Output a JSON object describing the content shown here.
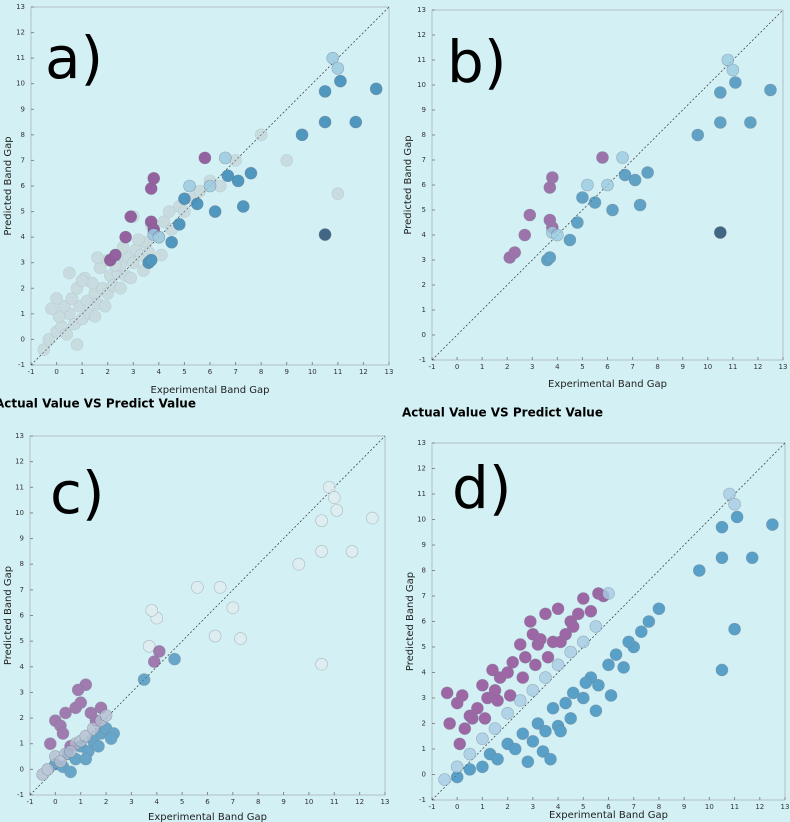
{
  "chart_data": [
    {
      "type": "scatter",
      "panel_label": "a)",
      "title": "Actual Value VS Predict Value",
      "xlabel": "Experimental Band Gap",
      "ylabel": "Predicted Band Gap",
      "xlim": [
        -1,
        13
      ],
      "ylim": [
        -1,
        13
      ],
      "xticks": [
        -1,
        0,
        1,
        2,
        3,
        4,
        5,
        6,
        7,
        8,
        9,
        10,
        11,
        12,
        13
      ],
      "yticks": [
        -1,
        0,
        1,
        2,
        3,
        4,
        5,
        6,
        7,
        8,
        9,
        10,
        11,
        12,
        13
      ],
      "series": [
        {
          "color": "#b4b8b8",
          "alpha": 0.35,
          "x": [
            -0.5,
            -0.3,
            0,
            0.2,
            0.4,
            0.5,
            0.7,
            0.9,
            1,
            1.2,
            1.3,
            1.5,
            1.6,
            1.8,
            2,
            2.1,
            2.2,
            2.4,
            2.5,
            2.7,
            2.8,
            3,
            3.1,
            3.3,
            3.5,
            3.6,
            3.8,
            4,
            4.2,
            4.5,
            4.8,
            5,
            5.3,
            5.6,
            6,
            6.4,
            7,
            8,
            9,
            11,
            0.1,
            0.3,
            0.6,
            0.8,
            1.1,
            1.4,
            1.7,
            1.9,
            2.3,
            2.6,
            2.9,
            3.2,
            3.4,
            3.7,
            4.1,
            4.4,
            0,
            0.5,
            1,
            1.5,
            2,
            2.5,
            3,
            -0.2,
            0.8,
            1.6
          ],
          "values": [
            -0.4,
            0,
            0.3,
            0.5,
            0.2,
            1.0,
            0.6,
            1.3,
            0.8,
            1.5,
            1.0,
            1.8,
            1.4,
            2.0,
            1.8,
            2.5,
            2.1,
            2.6,
            2.9,
            2.5,
            3.2,
            3.0,
            3.5,
            3.3,
            3.8,
            3.4,
            4.2,
            4.0,
            4.6,
            4.3,
            5.2,
            5.0,
            5.5,
            5.8,
            6.2,
            6.0,
            7.0,
            8.0,
            7.0,
            5.7,
            0.9,
            1.3,
            1.6,
            2.0,
            2.4,
            2.2,
            2.8,
            1.3,
            2.9,
            3.6,
            2.4,
            3.9,
            2.7,
            4.5,
            3.3,
            5.0,
            1.6,
            2.6,
            2.3,
            0.9,
            3.1,
            2.0,
            4.8,
            1.2,
            -0.2,
            3.2
          ]
        },
        {
          "color": "#8a4a92",
          "alpha": 0.85,
          "x": [
            2.1,
            2.3,
            2.7,
            2.9,
            3.7,
            3.8,
            3.7,
            5.8,
            3.8
          ],
          "values": [
            3.1,
            3.3,
            4.0,
            4.8,
            5.9,
            6.3,
            4.6,
            7.1,
            4.3
          ]
        },
        {
          "color": "#3a88b6",
          "alpha": 0.85,
          "x": [
            3.6,
            3.7,
            4.5,
            4.8,
            5.5,
            6.2,
            7.3,
            6.7,
            7.1,
            7.6,
            9.6,
            10.5,
            11.7,
            10.5,
            11.1,
            12.5,
            5.0
          ],
          "values": [
            3.0,
            3.1,
            3.8,
            4.5,
            5.3,
            5.0,
            5.2,
            6.4,
            6.2,
            6.5,
            8.0,
            8.5,
            8.5,
            9.7,
            10.1,
            9.8,
            5.5
          ]
        },
        {
          "color": "#9ccbe2",
          "alpha": 0.85,
          "x": [
            3.8,
            4.0,
            5.2,
            6.0,
            6.6,
            10.8,
            11.0
          ],
          "values": [
            4.1,
            4.0,
            6.0,
            6.0,
            7.1,
            11.0,
            10.6
          ]
        },
        {
          "color": "#3a6080",
          "alpha": 0.95,
          "x": [
            10.5
          ],
          "values": [
            4.1
          ]
        }
      ]
    },
    {
      "type": "scatter",
      "panel_label": "b)",
      "title": "Actual Value VS Predict Value",
      "xlabel": "Experimental Band Gap",
      "ylabel": "Predicted Band Gap",
      "xlim": [
        -1,
        13
      ],
      "ylim": [
        -1,
        13
      ],
      "xticks": [
        -1,
        0,
        1,
        2,
        3,
        4,
        5,
        6,
        7,
        8,
        9,
        10,
        11,
        12,
        13
      ],
      "yticks": [
        -1,
        0,
        1,
        2,
        3,
        4,
        5,
        6,
        7,
        8,
        9,
        10,
        11,
        12,
        13
      ],
      "series": [
        {
          "color": "#8a4a92",
          "alpha": 0.75,
          "x": [
            2.1,
            2.3,
            2.7,
            2.9,
            3.7,
            3.8,
            3.7,
            5.8,
            3.8
          ],
          "values": [
            3.1,
            3.3,
            4.0,
            4.8,
            5.9,
            6.3,
            4.6,
            7.1,
            4.3
          ]
        },
        {
          "color": "#3a88b6",
          "alpha": 0.75,
          "x": [
            3.6,
            3.7,
            4.5,
            4.8,
            5.5,
            6.2,
            7.3,
            6.7,
            7.1,
            7.6,
            9.6,
            10.5,
            11.7,
            10.5,
            11.1,
            12.5,
            5.0
          ],
          "values": [
            3.0,
            3.1,
            3.8,
            4.5,
            5.3,
            5.0,
            5.2,
            6.4,
            6.2,
            6.5,
            8.0,
            8.5,
            8.5,
            9.7,
            10.1,
            9.8,
            5.5
          ]
        },
        {
          "color": "#9ccbe2",
          "alpha": 0.8,
          "x": [
            3.8,
            4.0,
            5.2,
            6.0,
            6.6,
            10.8,
            11.0
          ],
          "values": [
            4.1,
            4.0,
            6.0,
            6.0,
            7.1,
            11.0,
            10.6
          ]
        },
        {
          "color": "#3a6080",
          "alpha": 0.95,
          "x": [
            10.5
          ],
          "values": [
            4.1
          ]
        }
      ]
    },
    {
      "type": "scatter",
      "panel_label": "c)",
      "xlabel": "Experimental Band Gap",
      "ylabel": "Predicted Band Gap",
      "xlim": [
        -1,
        13
      ],
      "ylim": [
        -1,
        13
      ],
      "xticks": [
        -1,
        0,
        1,
        2,
        3,
        4,
        5,
        6,
        7,
        8,
        9,
        10,
        11,
        12,
        13
      ],
      "yticks": [
        -1,
        0,
        1,
        2,
        3,
        4,
        5,
        6,
        7,
        8,
        9,
        10,
        11,
        12,
        13
      ],
      "series": [
        {
          "color": "#e4ecee",
          "alpha": 0.7,
          "x": [
            4.0,
            5.6,
            6.5,
            7.0,
            7.3,
            6.3,
            9.6,
            10.5,
            11.7,
            10.5,
            11.1,
            12.5,
            10.8,
            11.0,
            10.5,
            3.8,
            3.7
          ],
          "values": [
            5.9,
            7.1,
            7.1,
            6.3,
            5.1,
            5.2,
            8.0,
            8.5,
            8.5,
            9.7,
            10.1,
            9.8,
            11.0,
            10.6,
            4.1,
            6.2,
            4.8
          ]
        },
        {
          "color": "#8a4a92",
          "alpha": 0.7,
          "x": [
            -0.2,
            0,
            0.2,
            0.4,
            0.6,
            0.8,
            1,
            1.2,
            1.4,
            1.6,
            1.8,
            0.3,
            0.9,
            3.9,
            4.1
          ],
          "values": [
            1.0,
            1.9,
            1.7,
            2.2,
            0.9,
            2.4,
            2.6,
            3.3,
            2.2,
            1.9,
            2.4,
            1.4,
            3.1,
            4.2,
            4.6
          ]
        },
        {
          "color": "#3a88b6",
          "alpha": 0.7,
          "x": [
            0,
            0.3,
            0.5,
            0.8,
            1,
            1.3,
            1.5,
            1.8,
            2,
            2.3,
            0.6,
            1.2,
            1.7,
            2.2,
            4.7,
            3.5
          ],
          "values": [
            0.2,
            0.1,
            0.6,
            0.4,
            0.9,
            0.7,
            1.1,
            1.4,
            1.6,
            1.4,
            -0.1,
            0.4,
            0.9,
            1.2,
            4.3,
            3.5
          ]
        },
        {
          "color": "#b6bfd2",
          "alpha": 0.8,
          "x": [
            -0.5,
            -0.3,
            0,
            0.4,
            0.8,
            1,
            1.2,
            1.5,
            1.8,
            2,
            0.2,
            0.6
          ],
          "values": [
            -0.2,
            0,
            0.5,
            0.6,
            1.0,
            1.1,
            1.3,
            1.6,
            1.9,
            2.1,
            0.3,
            0.7
          ]
        }
      ]
    },
    {
      "type": "scatter",
      "panel_label": "d)",
      "xlabel": "Experimental Band Gap",
      "ylabel": "Predicted Band Gap",
      "xlim": [
        -1,
        13
      ],
      "ylim": [
        -1,
        13
      ],
      "xticks": [
        -1,
        0,
        1,
        2,
        3,
        4,
        5,
        6,
        7,
        8,
        9,
        10,
        11,
        12,
        13
      ],
      "yticks": [
        -1,
        0,
        1,
        2,
        3,
        4,
        5,
        6,
        7,
        8,
        9,
        10,
        11,
        12,
        13
      ],
      "series": [
        {
          "color": "#8a3a8a",
          "alpha": 0.75,
          "x": [
            -0.4,
            -0.3,
            0,
            0.2,
            0.3,
            0.5,
            0.8,
            1,
            1.2,
            1.4,
            1.5,
            1.7,
            2,
            2.2,
            2.5,
            2.7,
            3,
            3.2,
            3.5,
            3.8,
            4,
            4.3,
            4.5,
            4.8,
            5,
            5.3,
            5.6,
            5.8,
            0.1,
            0.6,
            1.1,
            1.6,
            2.1,
            2.6,
            3.1,
            3.6,
            4.1,
            4.6,
            2.9,
            3.3
          ],
          "values": [
            3.2,
            2.0,
            2.8,
            3.1,
            1.8,
            2.3,
            2.6,
            3.5,
            3.0,
            4.1,
            3.3,
            3.8,
            4.0,
            4.4,
            5.1,
            4.6,
            5.5,
            5.1,
            6.3,
            5.2,
            6.5,
            5.5,
            6.0,
            6.3,
            6.9,
            6.4,
            7.1,
            7.0,
            1.2,
            2.2,
            2.2,
            2.9,
            3.1,
            3.8,
            4.3,
            4.6,
            5.2,
            5.8,
            6.0,
            5.3
          ]
        },
        {
          "color": "#2f86b8",
          "alpha": 0.75,
          "x": [
            0,
            0.5,
            1,
            1.3,
            1.6,
            2,
            2.3,
            2.6,
            3,
            3.2,
            3.5,
            3.8,
            4,
            4.3,
            4.6,
            5,
            5.3,
            5.6,
            6,
            6.3,
            6.6,
            7,
            7.3,
            7.6,
            8,
            3.4,
            3.7,
            4.1,
            4.5,
            5.1,
            5.5,
            6.1,
            6.8,
            2.8,
            9.6,
            10.5,
            11.7,
            10.5,
            11.1,
            12.5,
            10.5,
            11.0
          ],
          "values": [
            -0.1,
            0.2,
            0.3,
            0.8,
            0.6,
            1.2,
            1.0,
            1.6,
            1.3,
            2.0,
            1.7,
            2.6,
            1.9,
            2.8,
            3.2,
            3.0,
            3.8,
            3.5,
            4.3,
            4.7,
            4.2,
            5.0,
            5.6,
            6.0,
            6.5,
            0.9,
            0.6,
            1.7,
            2.2,
            3.6,
            2.5,
            3.1,
            5.2,
            0.5,
            8.0,
            8.5,
            8.5,
            9.7,
            10.1,
            9.8,
            4.1,
            5.7
          ]
        },
        {
          "color": "#a9cde4",
          "alpha": 0.8,
          "x": [
            -0.5,
            0,
            0.5,
            1,
            1.5,
            2,
            2.5,
            3,
            3.5,
            4,
            4.5,
            5,
            5.5,
            6,
            10.8,
            11.0
          ],
          "values": [
            -0.2,
            0.3,
            0.8,
            1.4,
            1.8,
            2.4,
            2.9,
            3.3,
            3.8,
            4.3,
            4.8,
            5.2,
            5.8,
            7.1,
            11.0,
            10.6
          ]
        }
      ]
    }
  ]
}
